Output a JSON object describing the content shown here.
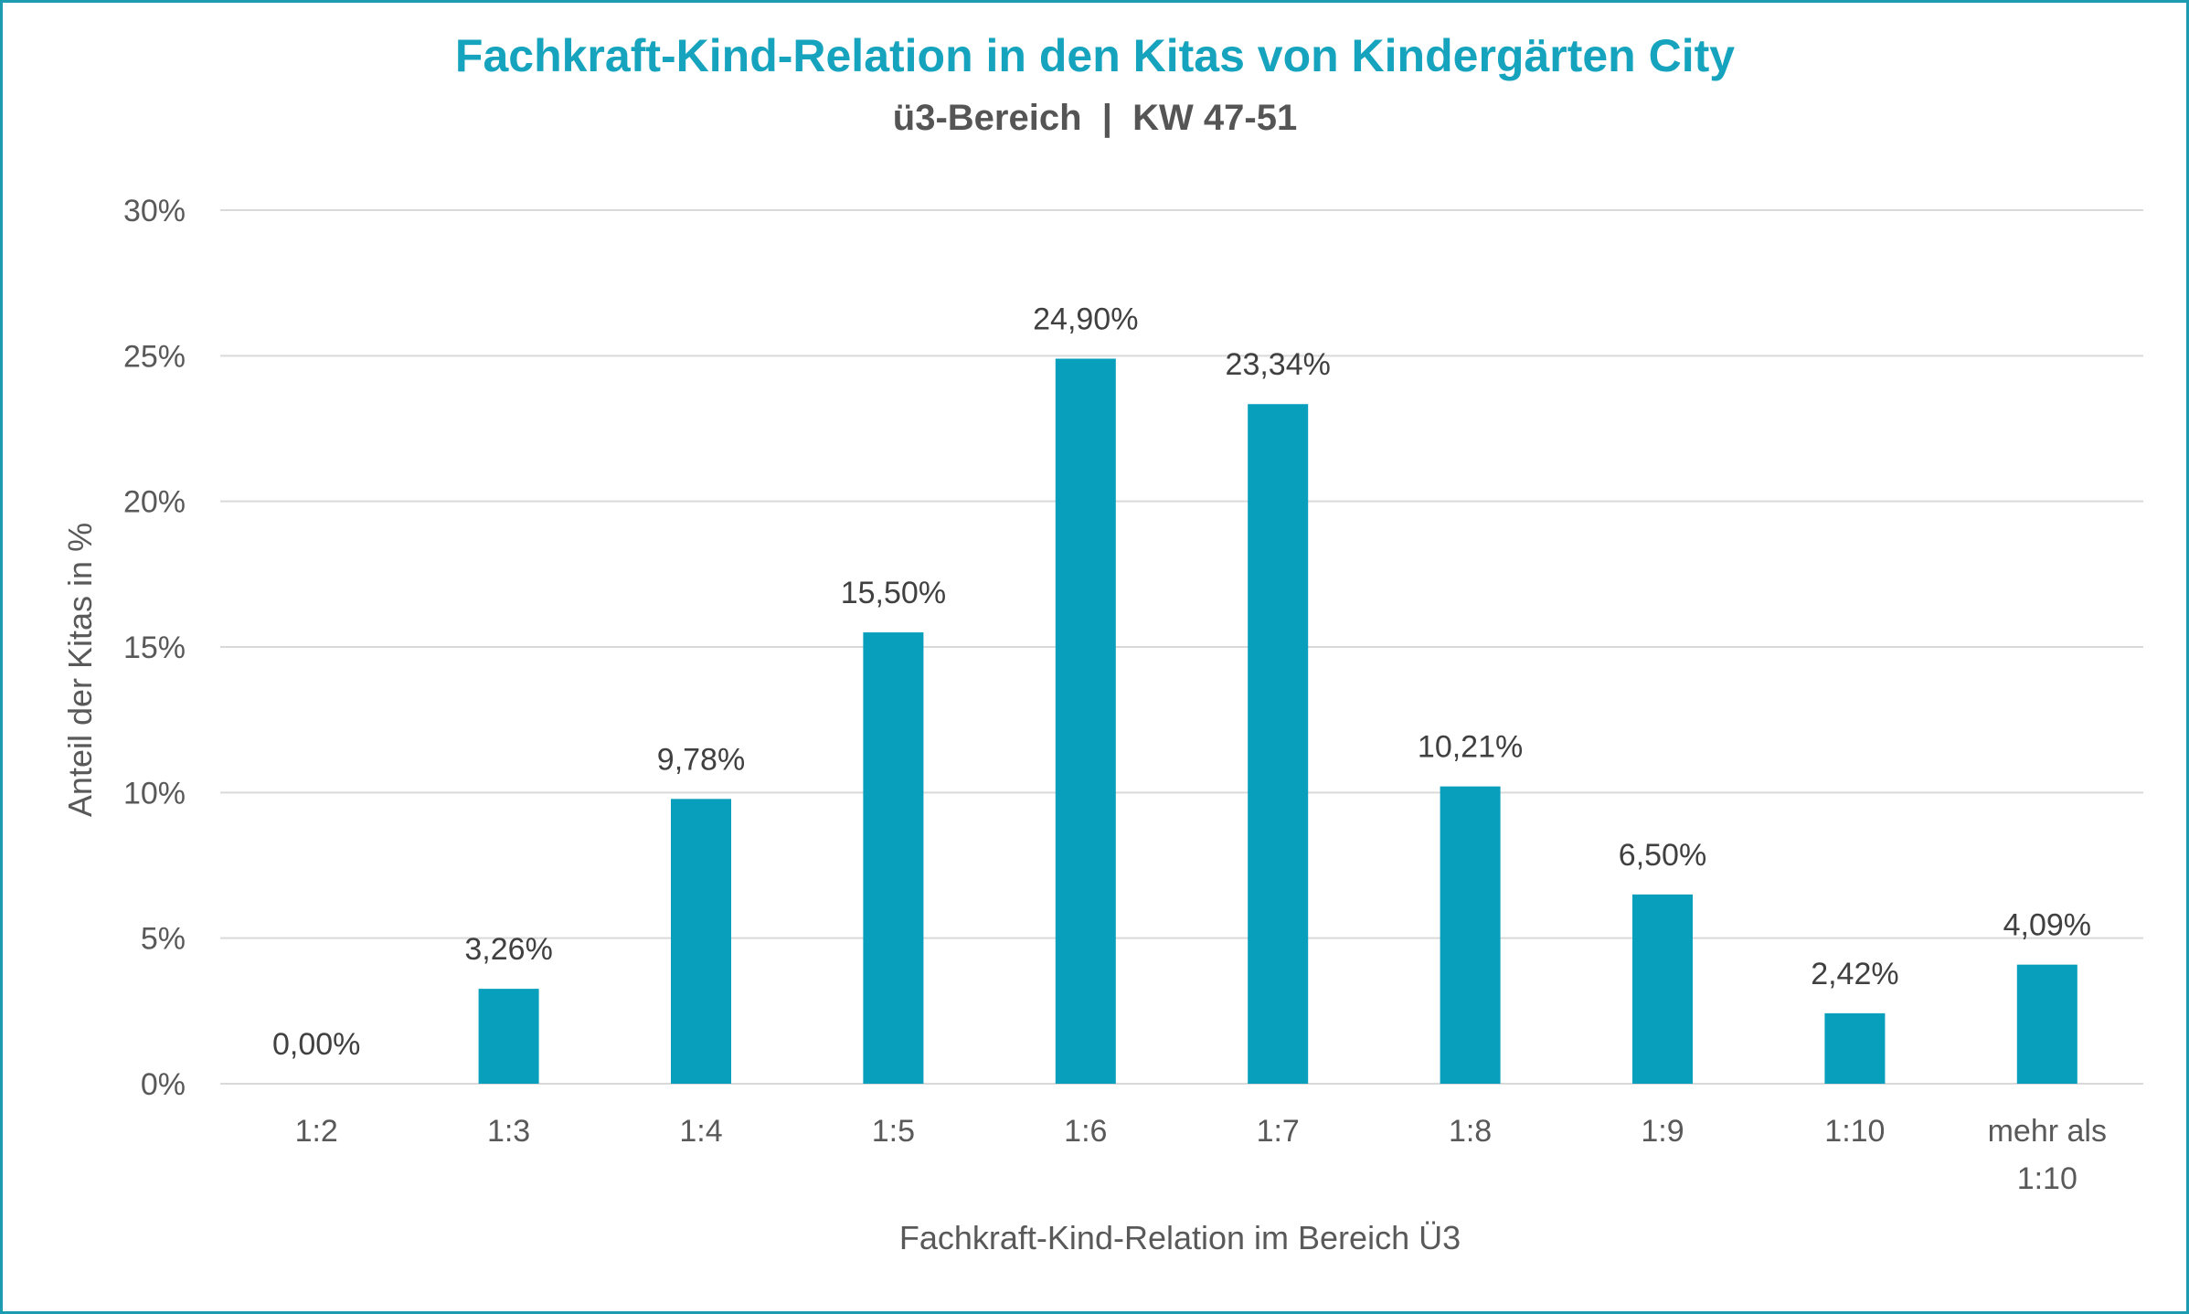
{
  "colors": {
    "bar": "#089fbc",
    "title": "#16a3bd",
    "subtitle": "#555555",
    "text": "#595959",
    "grid": "#d9d9d9",
    "border": "#1d9bb0"
  },
  "chart_data": {
    "type": "bar",
    "title": "Fachkraft-Kind-Relation in den Kitas von Kindergärten City",
    "subtitle": "ü3-Bereich  |  KW 47-51",
    "xlabel": "Fachkraft-Kind-Relation im Bereich Ü3",
    "ylabel": "Anteil der Kitas in %",
    "ylim": [
      0,
      30
    ],
    "yticks": [
      0,
      5,
      10,
      15,
      20,
      25,
      30
    ],
    "ytick_labels": [
      "0%",
      "5%",
      "10%",
      "15%",
      "20%",
      "25%",
      "30%"
    ],
    "grid": true,
    "legend": "none",
    "categories": [
      [
        "1:2"
      ],
      [
        "1:3"
      ],
      [
        "1:4"
      ],
      [
        "1:5"
      ],
      [
        "1:6"
      ],
      [
        "1:7"
      ],
      [
        "1:8"
      ],
      [
        "1:9"
      ],
      [
        "1:10"
      ],
      [
        "mehr als",
        "1:10"
      ]
    ],
    "values": [
      0.0,
      3.26,
      9.78,
      15.5,
      24.9,
      23.34,
      10.21,
      6.5,
      2.42,
      4.09
    ],
    "data_labels": [
      "0,00%",
      "3,26%",
      "9,78%",
      "15,50%",
      "24,90%",
      "23,34%",
      "10,21%",
      "6,50%",
      "2,42%",
      "4,09%"
    ]
  }
}
